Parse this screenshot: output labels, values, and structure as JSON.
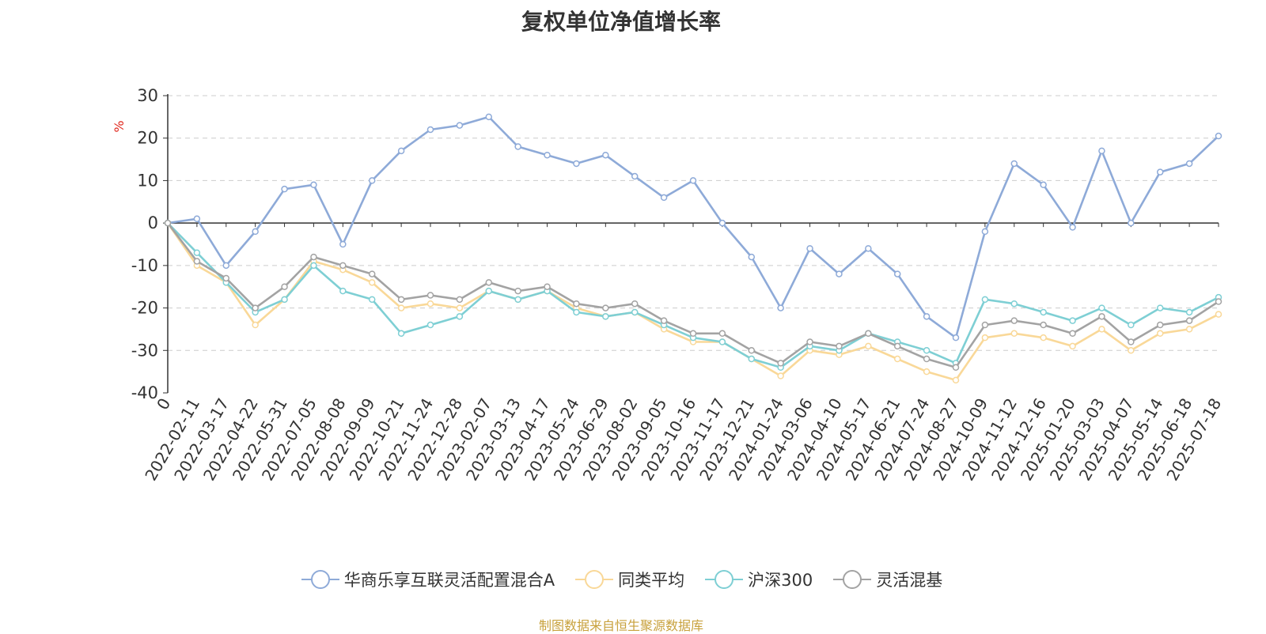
{
  "chart_data": {
    "type": "line",
    "title": "复权单位净值增长率",
    "ylabel": "%",
    "ylim": [
      -40,
      30
    ],
    "yticks": [
      30,
      20,
      10,
      0,
      -10,
      -20,
      -30,
      -40
    ],
    "grid": true,
    "legend_position": "bottom",
    "x_tick_labels": [
      "0",
      "2022-02-11",
      "2022-03-17",
      "2022-04-22",
      "2022-05-31",
      "2022-07-05",
      "2022-08-08",
      "2022-09-09",
      "2022-10-21",
      "2022-11-24",
      "2022-12-28",
      "2023-02-07",
      "2023-03-13",
      "2023-04-17",
      "2023-05-24",
      "2023-06-29",
      "2023-08-02",
      "2023-09-05",
      "2023-10-16",
      "2023-11-17",
      "2023-12-21",
      "2024-01-24",
      "2024-03-06",
      "2024-04-10",
      "2024-05-17",
      "2024-06-21",
      "2024-07-24",
      "2024-08-27",
      "2024-10-09",
      "2024-11-12",
      "2024-12-16",
      "2025-01-20",
      "2025-03-03",
      "2025-04-07",
      "2025-05-14",
      "2025-06-18",
      "2025-07-18"
    ],
    "series": [
      {
        "name": "华商乐享互联灵活配置混合A",
        "color": "#8eaad8",
        "values": [
          0,
          1,
          -10,
          -2,
          8,
          9,
          -5,
          10,
          17,
          22,
          23,
          25,
          18,
          16,
          14,
          16,
          11,
          6,
          10,
          0,
          -8,
          -20,
          -6,
          -12,
          -6,
          -12,
          -22,
          -27,
          -2,
          14,
          9,
          -1,
          17,
          0,
          12,
          14,
          20.5
        ]
      },
      {
        "name": "同类平均",
        "color": "#f9d898",
        "values": [
          0,
          -10,
          -14,
          -24,
          -18,
          -9,
          -11,
          -14,
          -20,
          -19,
          -20,
          -16,
          -18,
          -16,
          -20,
          -22,
          -21,
          -25,
          -28,
          -28,
          -32,
          -36,
          -30,
          -31,
          -29,
          -32,
          -35,
          -37,
          -27,
          -26,
          -27,
          -29,
          -25,
          -30,
          -26,
          -25,
          -21.5
        ]
      },
      {
        "name": "沪深300",
        "color": "#7ecfd4",
        "values": [
          0,
          -7,
          -14,
          -21,
          -18,
          -10,
          -16,
          -18,
          -26,
          -24,
          -22,
          -16,
          -18,
          -16,
          -21,
          -22,
          -21,
          -24,
          -27,
          -28,
          -32,
          -34,
          -29,
          -30,
          -26,
          -28,
          -30,
          -33,
          -18,
          -19,
          -21,
          -23,
          -20,
          -24,
          -20,
          -21,
          -17.5
        ]
      },
      {
        "name": "灵活混基",
        "color": "#a3a3a3",
        "values": [
          0,
          -9,
          -13,
          -20,
          -15,
          -8,
          -10,
          -12,
          -18,
          -17,
          -18,
          -14,
          -16,
          -15,
          -19,
          -20,
          -19,
          -23,
          -26,
          -26,
          -30,
          -33,
          -28,
          -29,
          -26,
          -29,
          -32,
          -34,
          -24,
          -23,
          -24,
          -26,
          -22,
          -28,
          -24,
          -23,
          -18.5
        ]
      }
    ]
  },
  "footer": {
    "source": "制图数据来自恒生聚源数据库"
  }
}
